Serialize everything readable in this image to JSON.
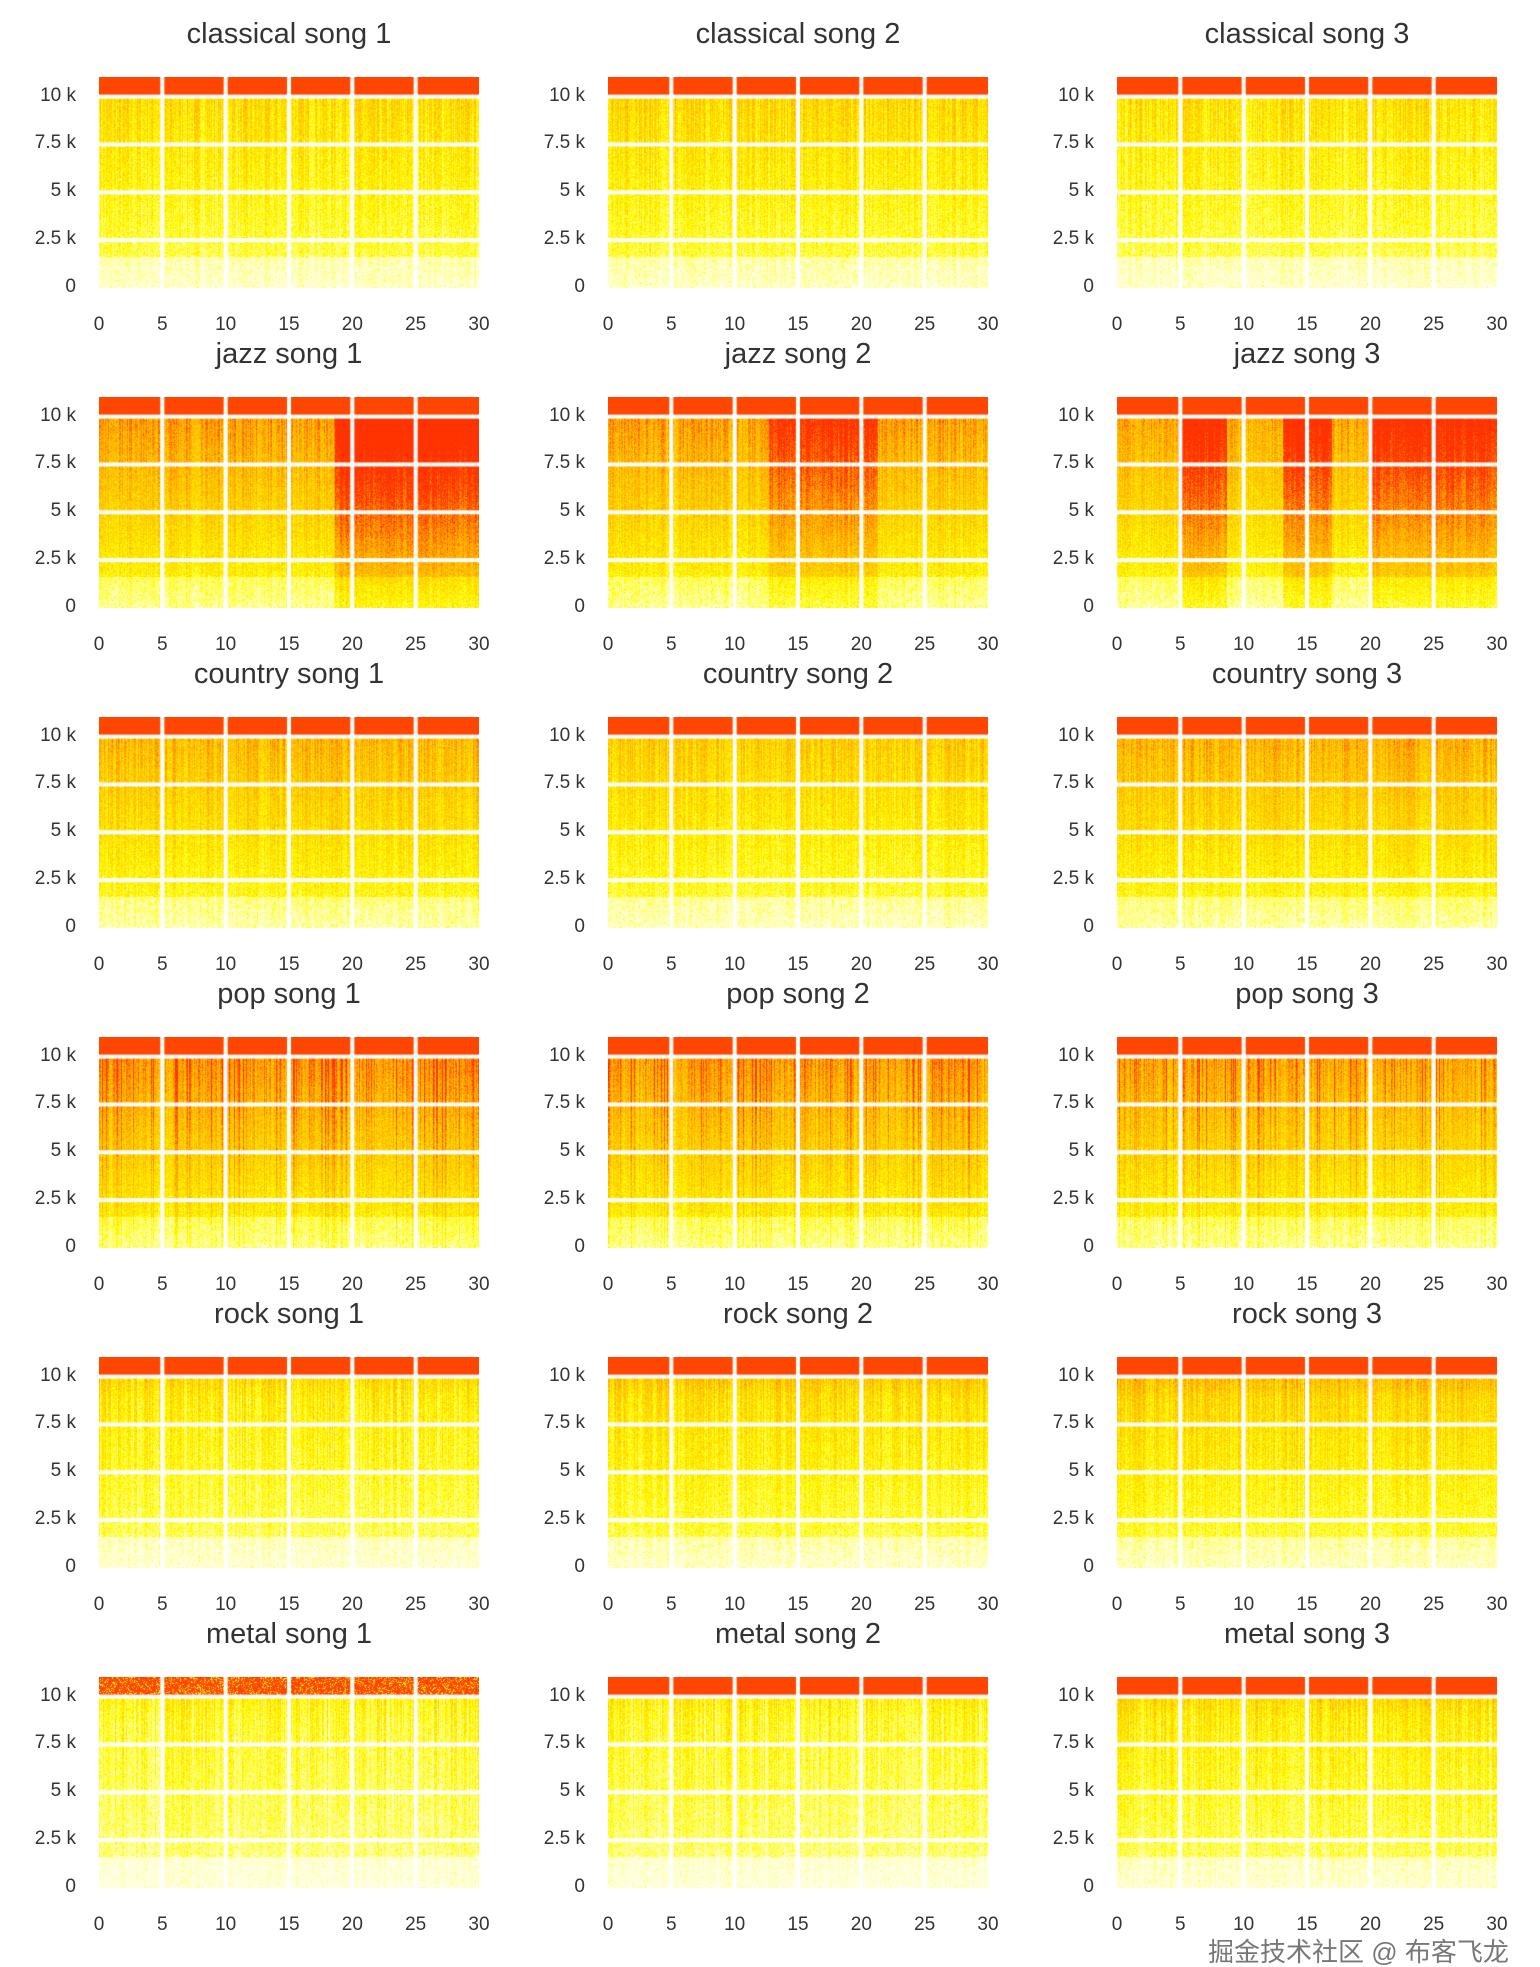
{
  "chart_data": {
    "type": "heatmap",
    "subtype": "spectrogram grid",
    "colormap": [
      "#ffffe6",
      "#ffff00",
      "#ffa500",
      "#ff3300"
    ],
    "xlabel": "",
    "ylabel": "",
    "xlim": [
      0,
      30
    ],
    "ylim": [
      0,
      11025
    ],
    "xticks": [
      0,
      5,
      10,
      15,
      20,
      25,
      30
    ],
    "xtick_labels": [
      "0",
      "5",
      "10",
      "15",
      "20",
      "25",
      "30"
    ],
    "yticks": [
      0,
      2500,
      5000,
      7500,
      10000
    ],
    "ytick_labels": [
      "0",
      "2.5 k",
      "5 k",
      "7.5 k",
      "10 k"
    ],
    "grid": true,
    "panels": [
      {
        "title": "classical song 1",
        "genre": "classical",
        "intensity": 0.35
      },
      {
        "title": "classical song 2",
        "genre": "classical",
        "intensity": 0.38
      },
      {
        "title": "classical song 3",
        "genre": "classical",
        "intensity": 0.33
      },
      {
        "title": "jazz song 1",
        "genre": "jazz",
        "intensity": 0.6
      },
      {
        "title": "jazz song 2",
        "genre": "jazz",
        "intensity": 0.58
      },
      {
        "title": "jazz song 3",
        "genre": "jazz",
        "intensity": 0.55
      },
      {
        "title": "country song 1",
        "genre": "country",
        "intensity": 0.5
      },
      {
        "title": "country song 2",
        "genre": "country",
        "intensity": 0.42
      },
      {
        "title": "country song 3",
        "genre": "country",
        "intensity": 0.52
      },
      {
        "title": "pop song 1",
        "genre": "pop",
        "intensity": 0.62
      },
      {
        "title": "pop song 2",
        "genre": "pop",
        "intensity": 0.58
      },
      {
        "title": "pop song 3",
        "genre": "pop",
        "intensity": 0.56
      },
      {
        "title": "rock song 1",
        "genre": "rock",
        "intensity": 0.3
      },
      {
        "title": "rock song 2",
        "genre": "rock",
        "intensity": 0.36
      },
      {
        "title": "rock song 3",
        "genre": "rock",
        "intensity": 0.4
      },
      {
        "title": "metal song 1",
        "genre": "metal",
        "intensity": 0.22
      },
      {
        "title": "metal song 2",
        "genre": "metal",
        "intensity": 0.22
      },
      {
        "title": "metal song 3",
        "genre": "metal",
        "intensity": 0.3
      }
    ]
  },
  "watermark": "掘金技术社区 @ 布客飞龙"
}
